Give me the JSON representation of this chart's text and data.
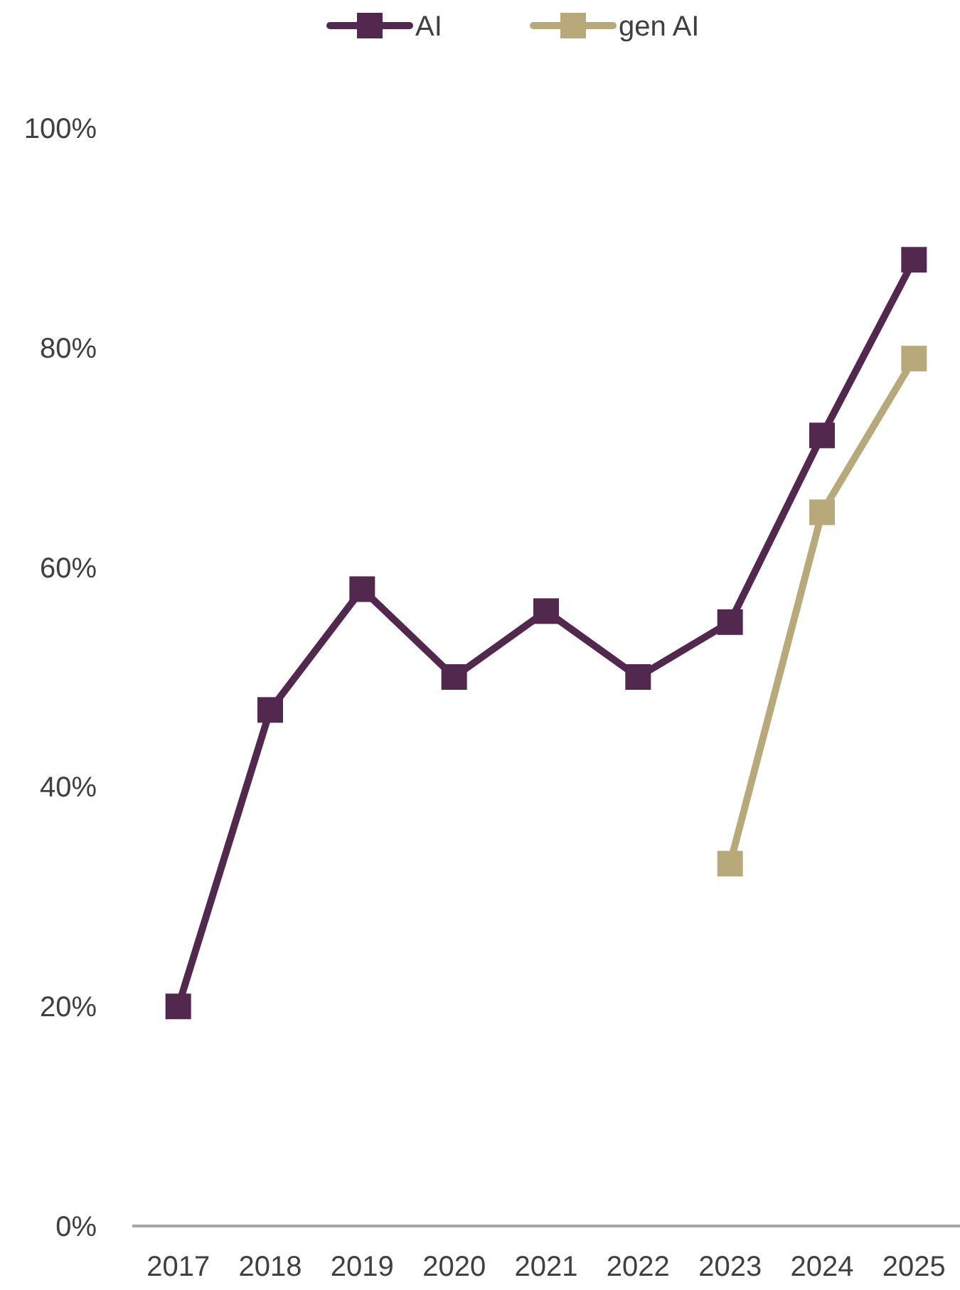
{
  "chart_data": {
    "type": "line",
    "categories": [
      "2017",
      "2018",
      "2019",
      "2020",
      "2021",
      "2022",
      "2023",
      "2024",
      "2025"
    ],
    "series": [
      {
        "name": "AI",
        "color": "#52284f",
        "values": [
          20,
          47,
          58,
          50,
          56,
          50,
          55,
          72,
          88
        ]
      },
      {
        "name": "gen AI",
        "color": "#b8a97a",
        "values": [
          null,
          null,
          null,
          null,
          null,
          null,
          33,
          65,
          79
        ]
      }
    ],
    "ylim": [
      0,
      100
    ],
    "yticks": [
      {
        "value": 0,
        "label": "0%"
      },
      {
        "value": 20,
        "label": "20%"
      },
      {
        "value": 40,
        "label": "40%"
      },
      {
        "value": 60,
        "label": "60%"
      },
      {
        "value": 80,
        "label": "80%"
      },
      {
        "value": 100,
        "label": "100%"
      }
    ],
    "grid": false,
    "legend": "top",
    "marker": "square",
    "line_style": "solid"
  }
}
